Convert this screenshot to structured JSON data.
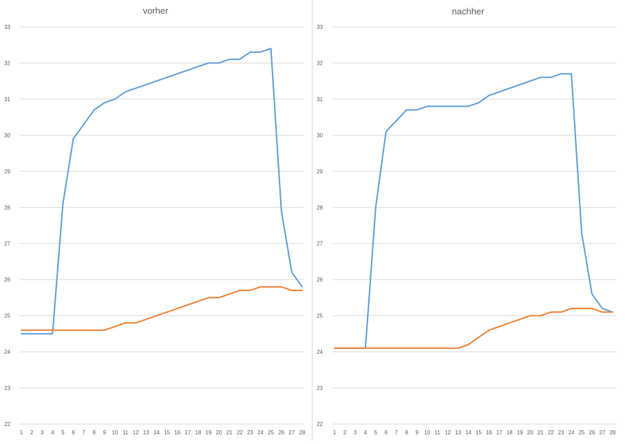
{
  "chart_data": [
    {
      "type": "line",
      "title": "vorher",
      "xlabel": "",
      "ylabel": "",
      "categories": [
        "1",
        "2",
        "3",
        "4",
        "5",
        "6",
        "7",
        "8",
        "9",
        "10",
        "11",
        "12",
        "13",
        "14",
        "15",
        "16",
        "17",
        "18",
        "19",
        "20",
        "21",
        "22",
        "23",
        "24",
        "25",
        "26",
        "27",
        "28"
      ],
      "ylim": [
        22,
        33
      ],
      "yticks": [
        "22",
        "23",
        "24",
        "25",
        "26",
        "27",
        "28",
        "29",
        "30",
        "31",
        "32",
        "33"
      ],
      "grid": true,
      "series": [
        {
          "color": "#5b9bd5",
          "values": [
            24.5,
            24.5,
            24.5,
            24.5,
            28.1,
            29.9,
            30.3,
            30.7,
            30.9,
            31.0,
            31.2,
            31.3,
            31.4,
            31.5,
            31.6,
            31.7,
            31.8,
            31.9,
            32.0,
            32.0,
            32.1,
            32.1,
            32.3,
            32.3,
            32.4,
            27.9,
            26.2,
            25.8
          ]
        },
        {
          "color": "#ed7d31",
          "values": [
            24.6,
            24.6,
            24.6,
            24.6,
            24.6,
            24.6,
            24.6,
            24.6,
            24.6,
            24.7,
            24.8,
            24.8,
            24.9,
            25.0,
            25.1,
            25.2,
            25.3,
            25.4,
            25.5,
            25.5,
            25.6,
            25.7,
            25.7,
            25.8,
            25.8,
            25.8,
            25.7,
            25.7
          ]
        }
      ]
    },
    {
      "type": "line",
      "title": "nachher",
      "xlabel": "",
      "ylabel": "",
      "categories": [
        "1",
        "2",
        "3",
        "4",
        "5",
        "6",
        "7",
        "8",
        "9",
        "10",
        "11",
        "12",
        "13",
        "14",
        "15",
        "16",
        "17",
        "18",
        "19",
        "20",
        "21",
        "22",
        "23",
        "24",
        "25",
        "26",
        "27",
        "28"
      ],
      "ylim": [
        22,
        33
      ],
      "yticks": [
        "22",
        "23",
        "24",
        "25",
        "26",
        "27",
        "28",
        "29",
        "30",
        "31",
        "32",
        "33"
      ],
      "grid": true,
      "series": [
        {
          "color": "#5b9bd5",
          "values": [
            24.1,
            24.1,
            24.1,
            24.1,
            28.0,
            30.1,
            30.4,
            30.7,
            30.7,
            30.8,
            30.8,
            30.8,
            30.8,
            30.8,
            30.9,
            31.1,
            31.2,
            31.3,
            31.4,
            31.5,
            31.6,
            31.6,
            31.7,
            31.7,
            27.3,
            25.6,
            25.2,
            25.1
          ]
        },
        {
          "color": "#ed7d31",
          "values": [
            24.1,
            24.1,
            24.1,
            24.1,
            24.1,
            24.1,
            24.1,
            24.1,
            24.1,
            24.1,
            24.1,
            24.1,
            24.1,
            24.2,
            24.4,
            24.6,
            24.7,
            24.8,
            24.9,
            25.0,
            25.0,
            25.1,
            25.1,
            25.2,
            25.2,
            25.2,
            25.1,
            25.1
          ]
        }
      ]
    }
  ]
}
